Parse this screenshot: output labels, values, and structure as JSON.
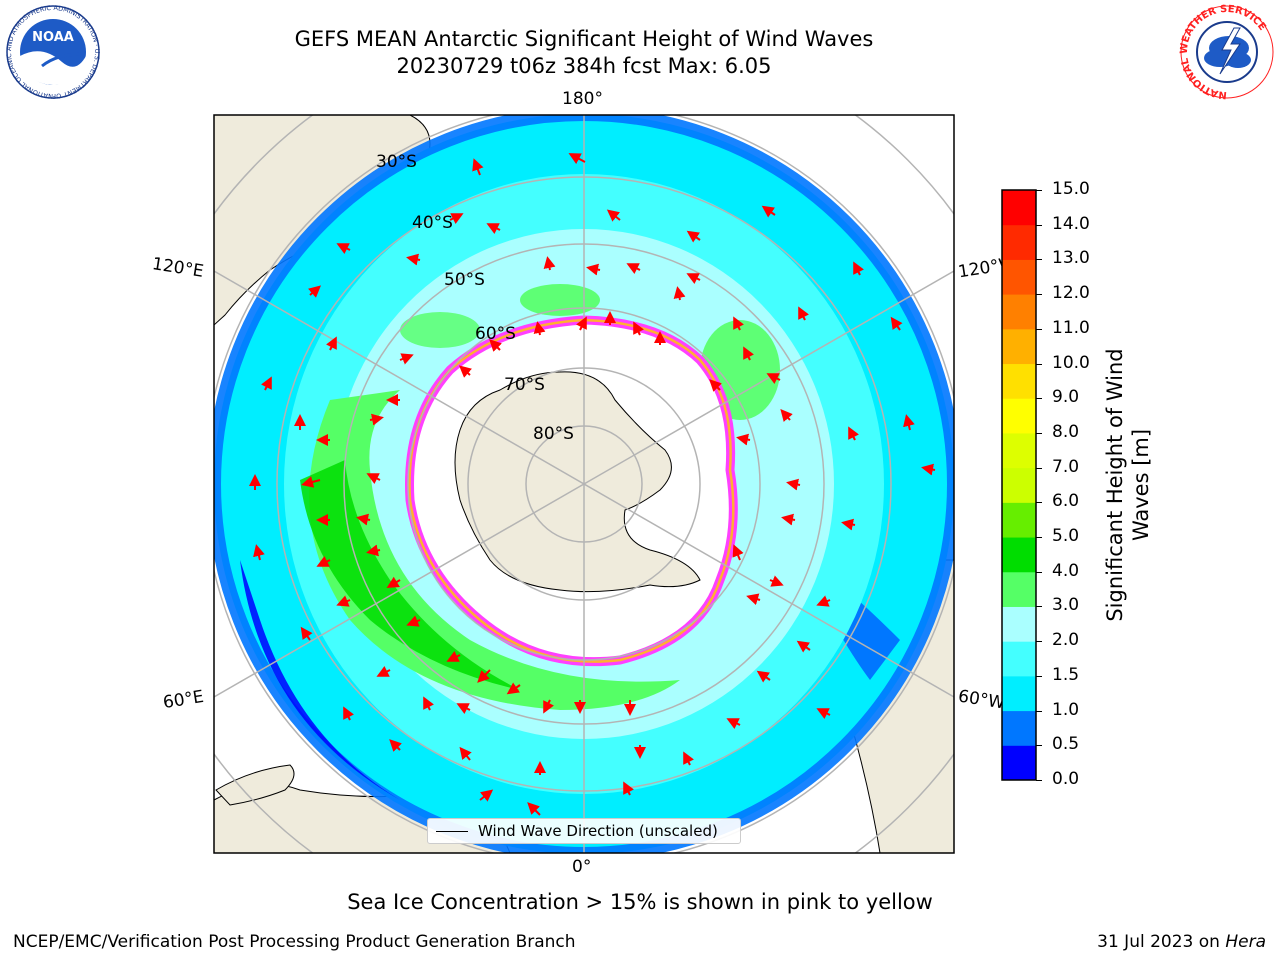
{
  "header": {
    "title_line1": "GEFS MEAN Antarctic Significant Height of Wind Waves",
    "title_line2": "20230729 t06z 384h fcst   Max: 6.05"
  },
  "logos": {
    "left": {
      "icon": "noaa-logo-icon",
      "text": "NOAA",
      "ring_text": "NATIONAL OCEANIC AND ATMOSPHERIC ADMINISTRATION · U.S. DEPARTMENT OF COMMERCE"
    },
    "right": {
      "icon": "national-weather-service-logo-icon",
      "ring_text": "NATIONAL WEATHER SERVICE"
    }
  },
  "map": {
    "projection": "south-polar-stereographic",
    "longitude_labels": {
      "top": "180°",
      "bottom": "0°",
      "upper_left": "120°E",
      "upper_right": "120°W",
      "lower_left": "60°E",
      "lower_right": "60°W"
    },
    "latitude_labels": [
      "30°S",
      "40°S",
      "50°S",
      "60°S",
      "70°S",
      "80°S"
    ],
    "colors": {
      "land": "#efebdc",
      "sea_ice": "#ffffff",
      "ice_edge": "#ff40ff",
      "ice_edge_inner": "#ffb030",
      "grid": "#b4b4b4",
      "arrow": "#ff0000"
    },
    "legend": {
      "label": "Wind Wave Direction (unscaled)"
    }
  },
  "colorbar": {
    "label_line1": "Significant Height of Wind",
    "label_line2": "Waves [m]",
    "ticks": [
      "0.0",
      "0.5",
      "1.0",
      "1.5",
      "2.0",
      "3.0",
      "4.0",
      "5.0",
      "6.0",
      "7.0",
      "8.0",
      "9.0",
      "10.0",
      "11.0",
      "12.0",
      "13.0",
      "14.0",
      "15.0"
    ],
    "colors": [
      "#0000ff",
      "#0077ff",
      "#00eeff",
      "#44ffff",
      "#aaffff",
      "#55ff66",
      "#00dd00",
      "#66ee00",
      "#ccff00",
      "#ddff00",
      "#ffff00",
      "#ffe000",
      "#ffb000",
      "#ff8000",
      "#ff5500",
      "#ff2a00",
      "#ff0000"
    ]
  },
  "subtitle": "Sea Ice Concentration > 15% is shown in pink to yellow",
  "footer": {
    "left": "NCEP/EMC/Verification Post Processing Product Generation Branch",
    "right_prefix": "31 Jul 2023 on ",
    "right_italic": "Hera"
  }
}
